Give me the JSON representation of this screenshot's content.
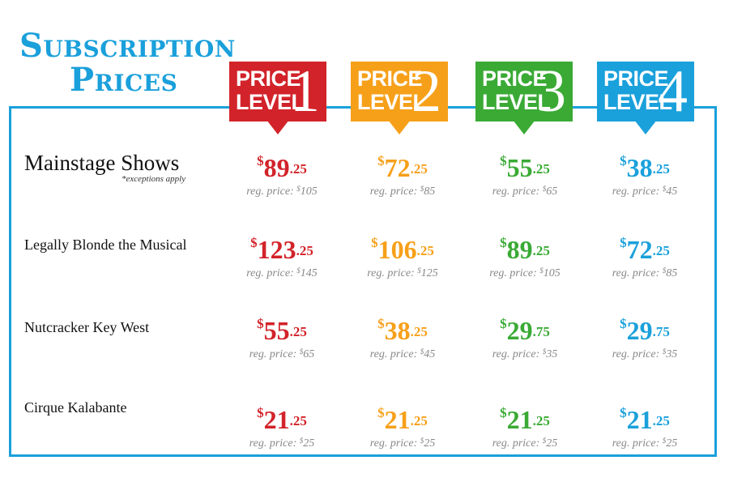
{
  "title": {
    "line1": "Subscription",
    "line2": "Prices"
  },
  "levels": [
    {
      "word1": "PRICE",
      "word2": "LEVEL",
      "number": "1",
      "color": "#d2232a"
    },
    {
      "word1": "PRICE",
      "word2": "LEVEL",
      "number": "2",
      "color": "#f6a01a"
    },
    {
      "word1": "PRICE",
      "word2": "LEVEL",
      "number": "3",
      "color": "#3aaa35"
    },
    {
      "word1": "PRICE",
      "word2": "LEVEL",
      "number": "4",
      "color": "#1aa0db"
    }
  ],
  "currency": "$",
  "reg_prefix": "reg. price: ",
  "rows": [
    {
      "label": "Mainstage Shows",
      "note": "*exceptions apply",
      "prices": [
        {
          "dollars": "89",
          "cents": ".25",
          "reg": "105"
        },
        {
          "dollars": "72",
          "cents": ".25",
          "reg": "85"
        },
        {
          "dollars": "55",
          "cents": ".25",
          "reg": "65"
        },
        {
          "dollars": "38",
          "cents": ".25",
          "reg": "45"
        }
      ]
    },
    {
      "label": "Legally Blonde the Musical",
      "prices": [
        {
          "dollars": "123",
          "cents": ".25",
          "reg": "145"
        },
        {
          "dollars": "106",
          "cents": ".25",
          "reg": "125"
        },
        {
          "dollars": "89",
          "cents": ".25",
          "reg": "105"
        },
        {
          "dollars": "72",
          "cents": ".25",
          "reg": "85"
        }
      ]
    },
    {
      "label": "Nutcracker Key West",
      "prices": [
        {
          "dollars": "55",
          "cents": ".25",
          "reg": "65"
        },
        {
          "dollars": "38",
          "cents": ".25",
          "reg": "45"
        },
        {
          "dollars": "29",
          "cents": ".75",
          "reg": "35"
        },
        {
          "dollars": "29",
          "cents": ".75",
          "reg": "35"
        }
      ]
    },
    {
      "label": "Cirque Kalabante",
      "prices": [
        {
          "dollars": "21",
          "cents": ".25",
          "reg": "25"
        },
        {
          "dollars": "21",
          "cents": ".25",
          "reg": "25"
        },
        {
          "dollars": "21",
          "cents": ".25",
          "reg": "25"
        },
        {
          "dollars": "21",
          "cents": ".25",
          "reg": "25"
        }
      ]
    }
  ]
}
